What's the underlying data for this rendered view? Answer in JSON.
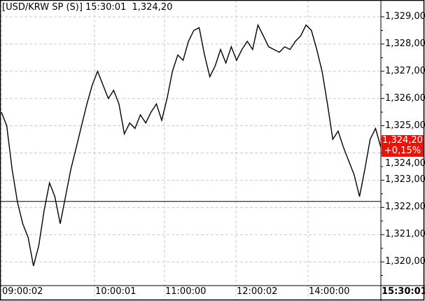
{
  "chart_data": {
    "type": "line",
    "title": "[USD/KRW SP (S)]",
    "header_time": "15:30:01",
    "header_price": "1,324,20",
    "ylim": [
      1319.3,
      1329.6
    ],
    "y_ticks": [
      "1,320,00",
      "1,321,00",
      "1,322,00",
      "1,323,00",
      "1,324,00",
      "1,325,00",
      "1,326,00",
      "1,327,00",
      "1,328,00",
      "1,329,00"
    ],
    "y_tick_values": [
      1320,
      1321,
      1322,
      1323,
      1324,
      1325,
      1326,
      1327,
      1328,
      1329
    ],
    "x_ticks": [
      "09:00:02",
      "10:00:01",
      "11:00:00",
      "12:00:02",
      "14:00:00"
    ],
    "x_end_label": "15:30:01",
    "reference_line": 1322.22,
    "last_price_label": "1,324,20",
    "change_label": "+0,15%",
    "grid": true,
    "colors": {
      "line": "#000000",
      "badge": "#e8140c",
      "grid": "#c8c8c8"
    },
    "series": [
      {
        "values": [
          1325.5,
          1325.0,
          1323.4,
          1322.2,
          1321.4,
          1320.9,
          1319.85,
          1320.6,
          1321.9,
          1322.9,
          1322.4,
          1321.4,
          1322.4,
          1323.4,
          1324.2,
          1325.0,
          1325.8,
          1326.5,
          1327.0,
          1326.5,
          1326.0,
          1326.3,
          1325.8,
          1324.7,
          1325.1,
          1324.9,
          1325.4,
          1325.1,
          1325.5,
          1325.8,
          1325.2,
          1326.0,
          1327.0,
          1327.6,
          1327.4,
          1328.1,
          1328.5,
          1328.6,
          1327.6,
          1326.8,
          1327.2,
          1327.8,
          1327.3,
          1327.9,
          1327.4,
          1327.8,
          1328.1,
          1327.8,
          1328.7,
          1328.3,
          1327.9,
          1327.8,
          1327.7,
          1327.9,
          1327.8,
          1328.1,
          1328.3,
          1328.7,
          1328.5,
          1327.8,
          1327.0,
          1325.8,
          1324.5,
          1324.8,
          1324.2,
          1323.7,
          1323.2,
          1322.4,
          1323.4,
          1324.5,
          1324.9,
          1324.2
        ]
      }
    ]
  }
}
